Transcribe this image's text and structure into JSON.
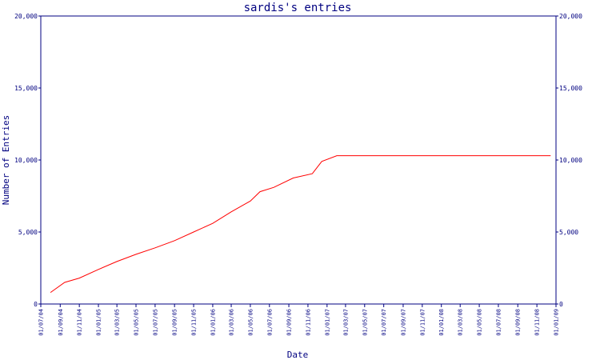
{
  "chart_data": {
    "type": "line",
    "title": "sardis's entries",
    "xlabel": "Date",
    "ylabel": "Number of Entries",
    "ylim": [
      0,
      20000
    ],
    "y_ticks": [
      "0",
      "5,000",
      "10,000",
      "15,000",
      "20,000"
    ],
    "x_ticks": [
      "01/07/04",
      "01/09/04",
      "01/11/04",
      "01/01/05",
      "01/03/05",
      "01/05/05",
      "01/07/05",
      "01/09/05",
      "01/11/05",
      "01/01/06",
      "01/03/06",
      "01/05/06",
      "01/07/06",
      "01/09/06",
      "01/11/06",
      "01/01/07",
      "01/03/07",
      "01/05/07",
      "01/07/07",
      "01/09/07",
      "01/11/07",
      "01/01/08",
      "01/03/08",
      "01/05/08",
      "01/07/08",
      "01/09/08",
      "01/11/08",
      "01/01/09"
    ],
    "xlim": [
      "2004-07-01",
      "2009-01-01"
    ],
    "grid": false,
    "series": [
      {
        "color": "#ff0000",
        "points": [
          {
            "x": "2004-08-01",
            "y": 800
          },
          {
            "x": "2004-09-15",
            "y": 1500
          },
          {
            "x": "2004-11-01",
            "y": 1800
          },
          {
            "x": "2005-01-01",
            "y": 2400
          },
          {
            "x": "2005-03-01",
            "y": 2950
          },
          {
            "x": "2005-05-01",
            "y": 3450
          },
          {
            "x": "2005-07-01",
            "y": 3900
          },
          {
            "x": "2005-09-01",
            "y": 4400
          },
          {
            "x": "2005-11-01",
            "y": 5000
          },
          {
            "x": "2006-01-01",
            "y": 5600
          },
          {
            "x": "2006-03-01",
            "y": 6400
          },
          {
            "x": "2006-05-01",
            "y": 7150
          },
          {
            "x": "2006-06-01",
            "y": 7800
          },
          {
            "x": "2006-07-15",
            "y": 8100
          },
          {
            "x": "2006-09-15",
            "y": 8750
          },
          {
            "x": "2006-11-15",
            "y": 9050
          },
          {
            "x": "2006-12-15",
            "y": 9900
          },
          {
            "x": "2007-02-01",
            "y": 10300
          },
          {
            "x": "2008-12-15",
            "y": 10300
          }
        ]
      }
    ]
  },
  "colors": {
    "axis": "#000080",
    "line": "#ff0000",
    "text": "#000080",
    "background": "#ffffff"
  }
}
